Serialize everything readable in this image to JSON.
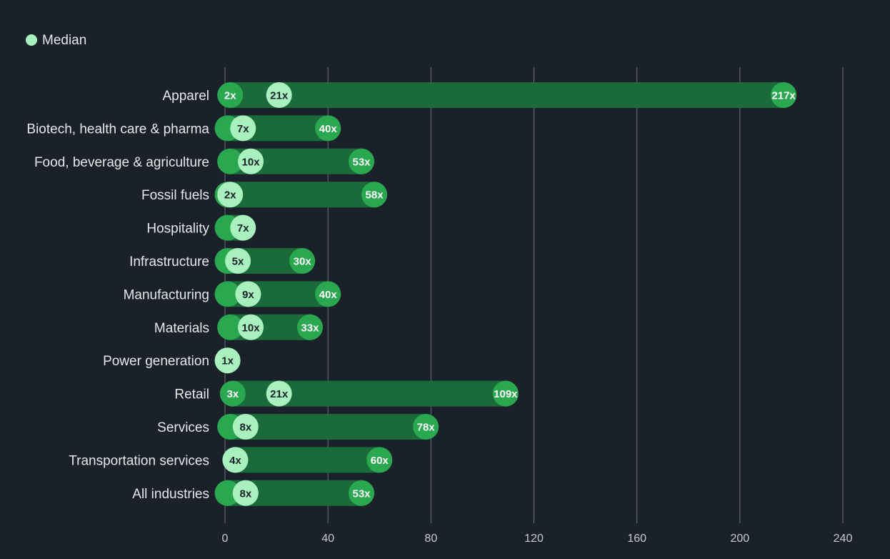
{
  "colors": {
    "background": "#1b212a",
    "bar": "#1b6b3a",
    "dot_dark": "#2aa84f",
    "dot_light": "#a8f0bd",
    "dot_text_dark": "#ffffff",
    "dot_text_light": "#1b212a",
    "label": "#e6e8ea",
    "axis_label": "#c7cbd0",
    "grid": "#6b7078"
  },
  "chart_data": {
    "type": "bar",
    "orientation": "horizontal",
    "legend": {
      "label": "Median",
      "position": "top-left"
    },
    "x_axis": {
      "ticks": [
        0,
        40,
        80,
        120,
        160,
        200,
        240
      ],
      "range": [
        0,
        240
      ],
      "grid": true
    },
    "categories": [
      "Apparel",
      "Biotech, health care & pharma",
      "Food, beverage & agriculture",
      "Fossil fuels",
      "Hospitality",
      "Infrastructure",
      "Manufacturing",
      "Materials",
      "Power generation",
      "Retail",
      "Services",
      "Transportation services",
      "All industries"
    ],
    "min": [
      2,
      1,
      2,
      1,
      1,
      1,
      1,
      2,
      1,
      3,
      2,
      4,
      1
    ],
    "median": [
      21,
      7,
      10,
      2,
      7,
      5,
      9,
      10,
      1,
      21,
      8,
      4,
      8
    ],
    "max": [
      217,
      40,
      53,
      58,
      7,
      30,
      40,
      33,
      1,
      109,
      78,
      60,
      53
    ],
    "min_labels": [
      "2x",
      "",
      "",
      "",
      "",
      "",
      "",
      "",
      "",
      "3x",
      "",
      "",
      ""
    ],
    "median_labels": [
      "21x",
      "7x",
      "10x",
      "2x",
      "7x",
      "5x",
      "9x",
      "10x",
      "1x",
      "21x",
      "8x",
      "4x",
      "8x"
    ],
    "max_labels": [
      "217x",
      "40x",
      "53x",
      "58x",
      "",
      "30x",
      "40x",
      "33x",
      "",
      "109x",
      "78x",
      "60x",
      "53x"
    ]
  }
}
